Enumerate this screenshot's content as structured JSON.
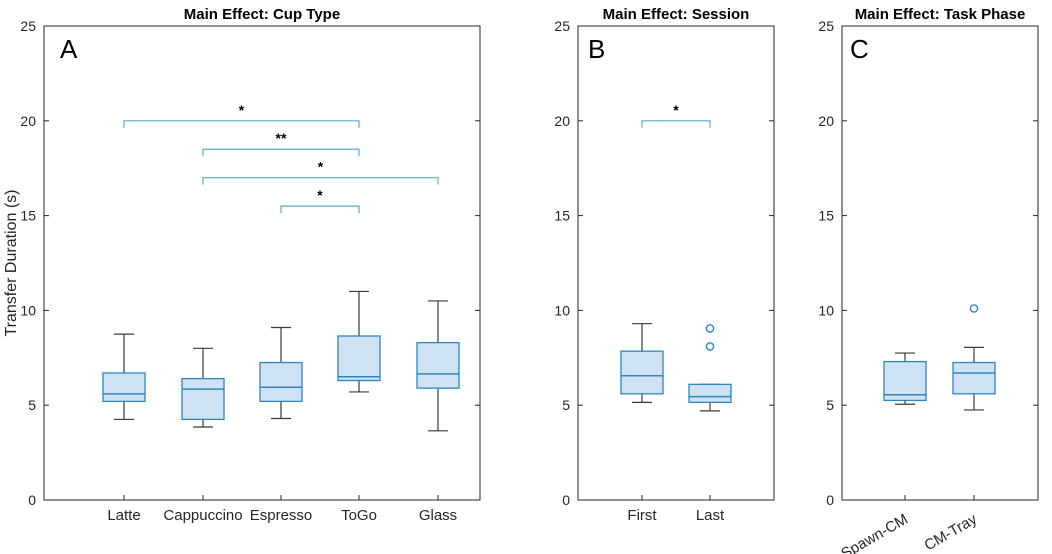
{
  "chart_data": [
    {
      "type": "box",
      "panel": "A",
      "title": "Main Effect: Cup Type",
      "ylabel": "Transfer Duration (s)",
      "xlabel": "",
      "ylim": [
        0,
        25
      ],
      "yticks": [
        0,
        5,
        10,
        15,
        20,
        25
      ],
      "categories": [
        "Latte",
        "Cappuccino",
        "Espresso",
        "ToGo",
        "Glass"
      ],
      "boxes": [
        {
          "min": 4.25,
          "q1": 5.2,
          "median": 5.6,
          "q3": 6.7,
          "max": 8.75,
          "outliers": []
        },
        {
          "min": 3.85,
          "q1": 4.25,
          "median": 5.85,
          "q3": 6.4,
          "max": 8.0,
          "outliers": []
        },
        {
          "min": 4.3,
          "q1": 5.2,
          "median": 5.95,
          "q3": 7.25,
          "max": 9.1,
          "outliers": []
        },
        {
          "min": 5.7,
          "q1": 6.3,
          "median": 6.5,
          "q3": 8.65,
          "max": 11.0,
          "outliers": []
        },
        {
          "min": 3.65,
          "q1": 5.9,
          "median": 6.65,
          "q3": 8.3,
          "max": 10.5,
          "outliers": []
        }
      ],
      "significance": [
        {
          "from": "Latte",
          "to": "ToGo",
          "y": 20.0,
          "label": "*"
        },
        {
          "from": "Cappuccino",
          "to": "ToGo",
          "y": 18.5,
          "label": "**"
        },
        {
          "from": "Cappuccino",
          "to": "Glass",
          "y": 17.0,
          "label": "*"
        },
        {
          "from": "Espresso",
          "to": "ToGo",
          "y": 15.5,
          "label": "*"
        }
      ]
    },
    {
      "type": "box",
      "panel": "B",
      "title": "Main Effect: Session",
      "ylabel": "",
      "xlabel": "",
      "ylim": [
        0,
        25
      ],
      "yticks": [
        0,
        5,
        10,
        15,
        20,
        25
      ],
      "categories": [
        "First",
        "Last"
      ],
      "boxes": [
        {
          "min": 5.15,
          "q1": 5.6,
          "median": 6.55,
          "q3": 7.85,
          "max": 9.3,
          "outliers": []
        },
        {
          "min": 4.7,
          "q1": 5.15,
          "median": 5.45,
          "q3": 6.1,
          "max": 6.1,
          "outliers": [
            8.1,
            9.05
          ]
        }
      ],
      "significance": [
        {
          "from": "First",
          "to": "Last",
          "y": 20.0,
          "label": "*"
        }
      ]
    },
    {
      "type": "box",
      "panel": "C",
      "title": "Main Effect: Task Phase",
      "ylabel": "",
      "xlabel": "",
      "ylim": [
        0,
        25
      ],
      "yticks": [
        0,
        5,
        10,
        15,
        20,
        25
      ],
      "categories": [
        "Spawn-CM",
        "CM-Tray"
      ],
      "boxes": [
        {
          "min": 5.05,
          "q1": 5.25,
          "median": 5.55,
          "q3": 7.3,
          "max": 7.75,
          "outliers": []
        },
        {
          "min": 4.75,
          "q1": 5.6,
          "median": 6.7,
          "q3": 7.25,
          "max": 8.05,
          "outliers": [
            10.1
          ]
        }
      ],
      "significance": []
    }
  ]
}
